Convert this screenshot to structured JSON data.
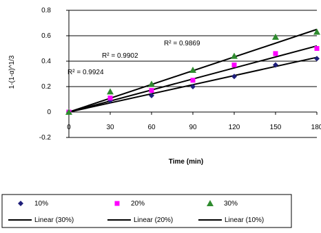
{
  "chart_data": {
    "type": "scatter",
    "xlabel": "Time (min)",
    "ylabel": "1-(1-α)^1/3",
    "xlim": [
      0,
      180
    ],
    "ylim": [
      -0.2,
      0.8
    ],
    "x_ticks": [
      0,
      30,
      60,
      90,
      120,
      150,
      180
    ],
    "y_ticks": [
      -0.2,
      0,
      0.2,
      0.4,
      0.6,
      0.8
    ],
    "y_tick_labels": [
      "-0.2",
      "0",
      "0.2",
      "0.4",
      "0.6",
      "0.8"
    ],
    "x_tick_labels": [
      "0",
      "30",
      "60",
      "90",
      "120",
      "150",
      "180"
    ],
    "grid": "horizontal",
    "legend_position": "bottom",
    "series": [
      {
        "name": "10%",
        "marker": "diamond",
        "color": "#1f1f7a",
        "x": [
          0,
          30,
          60,
          90,
          120,
          150,
          180
        ],
        "y": [
          0.0,
          0.09,
          0.13,
          0.2,
          0.28,
          0.37,
          0.42
        ]
      },
      {
        "name": "20%",
        "marker": "square",
        "color": "#ff00ff",
        "x": [
          0,
          30,
          60,
          90,
          120,
          150,
          180
        ],
        "y": [
          0.0,
          0.11,
          0.17,
          0.25,
          0.37,
          0.46,
          0.5
        ]
      },
      {
        "name": "30%",
        "marker": "triangle",
        "color": "#2e8b2e",
        "x": [
          0,
          30,
          60,
          90,
          120,
          150,
          180
        ],
        "y": [
          0.0,
          0.16,
          0.22,
          0.33,
          0.44,
          0.59,
          0.63
        ]
      }
    ],
    "trendlines": [
      {
        "name": "Linear (30%)",
        "start": [
          0,
          0.0
        ],
        "end": [
          180,
          0.65
        ]
      },
      {
        "name": "Linear (20%)",
        "start": [
          0,
          0.0
        ],
        "end": [
          180,
          0.52
        ]
      },
      {
        "name": "Linear (10%)",
        "start": [
          0,
          0.0
        ],
        "end": [
          180,
          0.43
        ]
      }
    ],
    "annotations": [
      {
        "text": "R² = 0.9869"
      },
      {
        "text": "R² = 0.9902"
      },
      {
        "text": "R² = 0.9924"
      }
    ],
    "legend": {
      "markers": [
        "10%",
        "20%",
        "30%"
      ],
      "lines": [
        "Linear (30%)",
        "Linear (20%)",
        "Linear (10%)"
      ]
    }
  }
}
